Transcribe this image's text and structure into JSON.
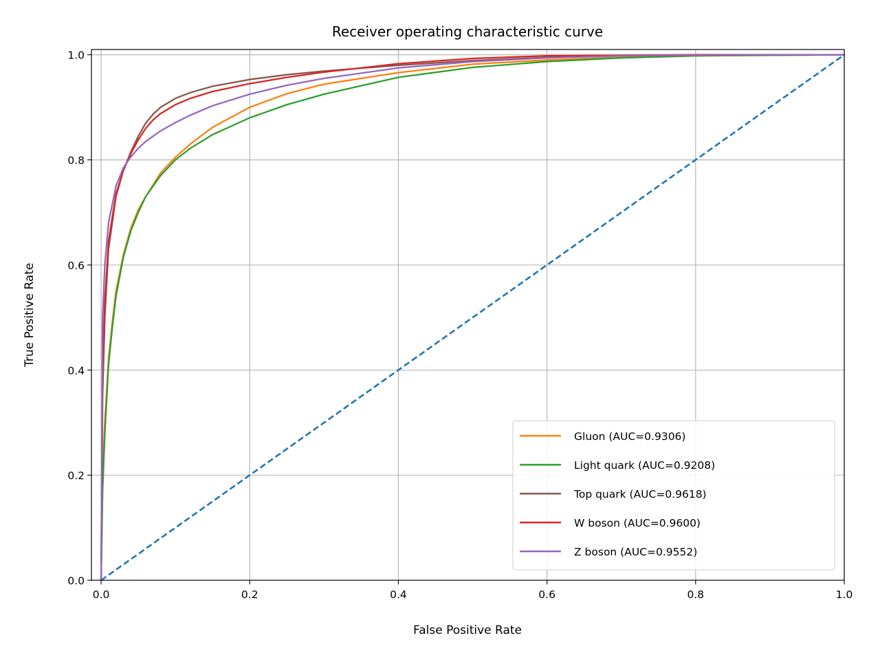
{
  "chart_data": {
    "type": "line",
    "title": "Receiver operating characteristic curve",
    "xlabel": "False Positive Rate",
    "ylabel": "True Positive Rate",
    "xlim": [
      -0.013,
      1.0
    ],
    "ylim": [
      0.0,
      1.01
    ],
    "grid": true,
    "legend_position": "lower-right",
    "xticks": [
      "0.0",
      "0.2",
      "0.4",
      "0.6",
      "0.8",
      "1.0"
    ],
    "yticks": [
      "0.0",
      "0.2",
      "0.4",
      "0.6",
      "0.8",
      "1.0"
    ],
    "reference_line": {
      "style": "dashed",
      "color": "#1f77b4",
      "x": [
        0,
        1
      ],
      "y": [
        0,
        1
      ]
    },
    "series": [
      {
        "name": "Gluon (AUC=0.9306)",
        "color": "#ff7f0e",
        "x": [
          0,
          0.002,
          0.005,
          0.01,
          0.015,
          0.02,
          0.03,
          0.04,
          0.05,
          0.06,
          0.08,
          0.1,
          0.12,
          0.15,
          0.2,
          0.25,
          0.3,
          0.4,
          0.5,
          0.6,
          0.7,
          0.8,
          0.9,
          1.0
        ],
        "y": [
          0,
          0.2,
          0.3,
          0.42,
          0.49,
          0.55,
          0.62,
          0.67,
          0.705,
          0.73,
          0.775,
          0.805,
          0.83,
          0.862,
          0.9,
          0.926,
          0.944,
          0.966,
          0.982,
          0.99,
          0.995,
          0.998,
          0.999,
          1.0
        ]
      },
      {
        "name": "Light quark (AUC=0.9208)",
        "color": "#2ca02c",
        "x": [
          0,
          0.002,
          0.005,
          0.01,
          0.015,
          0.02,
          0.03,
          0.04,
          0.05,
          0.06,
          0.08,
          0.1,
          0.12,
          0.15,
          0.2,
          0.25,
          0.3,
          0.4,
          0.5,
          0.6,
          0.7,
          0.8,
          0.9,
          1.0
        ],
        "y": [
          0,
          0.17,
          0.28,
          0.41,
          0.48,
          0.54,
          0.615,
          0.665,
          0.7,
          0.73,
          0.77,
          0.8,
          0.822,
          0.848,
          0.88,
          0.905,
          0.925,
          0.957,
          0.976,
          0.987,
          0.994,
          0.998,
          0.999,
          1.0
        ]
      },
      {
        "name": "Top quark (AUC=0.9618)",
        "color": "#8c564b",
        "x": [
          0,
          0.002,
          0.005,
          0.01,
          0.02,
          0.03,
          0.04,
          0.05,
          0.06,
          0.07,
          0.08,
          0.1,
          0.12,
          0.15,
          0.2,
          0.25,
          0.3,
          0.4,
          0.5,
          0.6,
          0.7,
          0.8,
          0.9,
          1.0
        ],
        "y": [
          0,
          0.35,
          0.5,
          0.63,
          0.73,
          0.78,
          0.815,
          0.845,
          0.87,
          0.887,
          0.9,
          0.917,
          0.928,
          0.94,
          0.953,
          0.962,
          0.969,
          0.98,
          0.989,
          0.995,
          0.998,
          0.999,
          1.0,
          1.0
        ]
      },
      {
        "name": "W boson (AUC=0.9600)",
        "color": "#d62728",
        "x": [
          0,
          0.002,
          0.005,
          0.01,
          0.02,
          0.03,
          0.04,
          0.05,
          0.06,
          0.07,
          0.08,
          0.1,
          0.12,
          0.15,
          0.2,
          0.25,
          0.3,
          0.4,
          0.5,
          0.6,
          0.7,
          0.8,
          0.9,
          1.0
        ],
        "y": [
          0,
          0.4,
          0.53,
          0.645,
          0.735,
          0.78,
          0.812,
          0.838,
          0.86,
          0.876,
          0.888,
          0.905,
          0.917,
          0.93,
          0.945,
          0.957,
          0.967,
          0.983,
          0.993,
          0.998,
          0.999,
          1.0,
          1.0,
          1.0
        ]
      },
      {
        "name": "Z boson (AUC=0.9552)",
        "color": "#9467bd",
        "x": [
          0,
          0.002,
          0.005,
          0.01,
          0.02,
          0.03,
          0.04,
          0.05,
          0.06,
          0.07,
          0.08,
          0.1,
          0.12,
          0.15,
          0.2,
          0.25,
          0.3,
          0.4,
          0.5,
          0.6,
          0.7,
          0.8,
          0.9,
          1.0
        ],
        "y": [
          0,
          0.5,
          0.6,
          0.68,
          0.75,
          0.785,
          0.806,
          0.822,
          0.835,
          0.845,
          0.855,
          0.871,
          0.885,
          0.903,
          0.925,
          0.942,
          0.955,
          0.975,
          0.987,
          0.994,
          0.998,
          0.999,
          1.0,
          1.0
        ]
      }
    ]
  }
}
